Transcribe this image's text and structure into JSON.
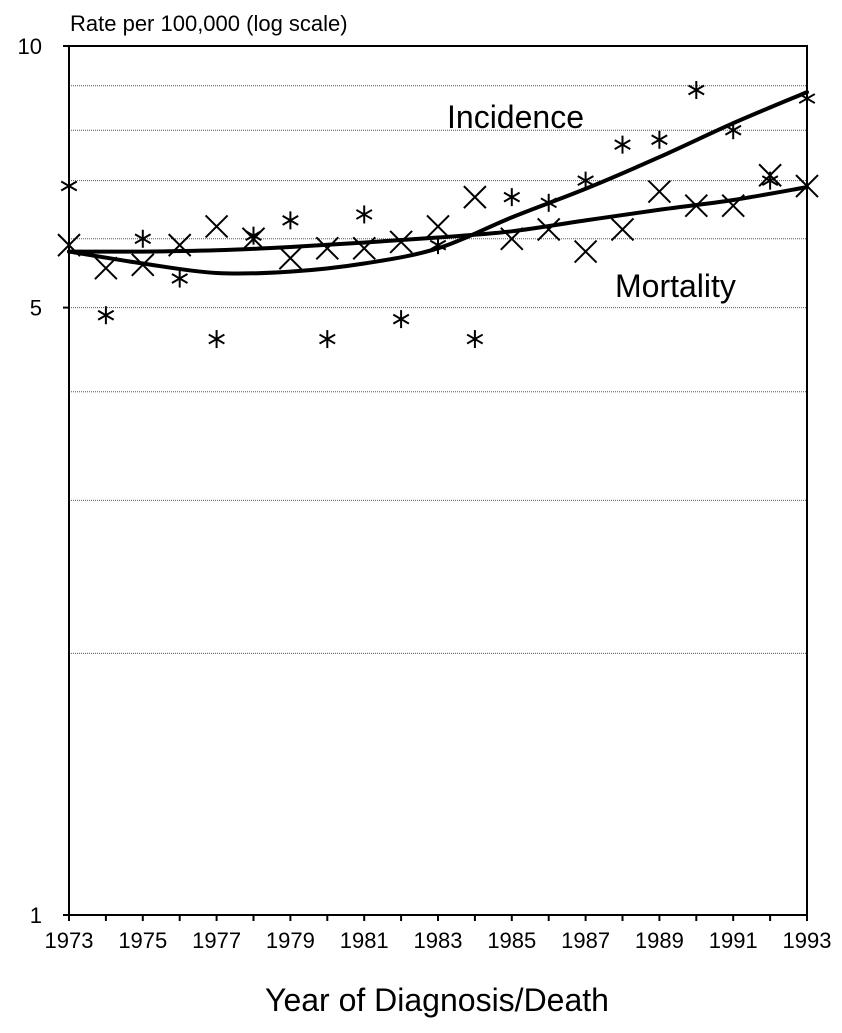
{
  "chart_data": {
    "type": "scatter",
    "title": "Rate per 100,000 (log scale)",
    "xlabel": "Year of Diagnosis/Death",
    "ylabel": "Rate per 100,000 (log scale)",
    "yscale": "log",
    "ylim": [
      1,
      10
    ],
    "xlim": [
      1973,
      1993
    ],
    "y_tick_labels": [
      "10",
      "5",
      "1"
    ],
    "x_tick_labels": [
      "1973",
      "1975",
      "1977",
      "1979",
      "1981",
      "1983",
      "1985",
      "1987",
      "1989",
      "1991",
      "1993"
    ],
    "grid_y": [
      9,
      8,
      7,
      6,
      5,
      4,
      3,
      2
    ],
    "series": [
      {
        "name": "Incidence",
        "marker": "asterisk",
        "x": [
          1973,
          1974,
          1975,
          1976,
          1977,
          1978,
          1979,
          1980,
          1981,
          1982,
          1983,
          1984,
          1985,
          1986,
          1987,
          1988,
          1989,
          1990,
          1991,
          1992,
          1993
        ],
        "y": [
          6.9,
          4.9,
          6.0,
          5.4,
          4.6,
          6.05,
          6.3,
          4.6,
          6.4,
          4.85,
          5.9,
          4.6,
          6.7,
          6.6,
          7.0,
          7.7,
          7.8,
          8.9,
          8.0,
          7.0,
          8.7
        ],
        "trend": [
          [
            1973,
            5.8
          ],
          [
            1975,
            5.62
          ],
          [
            1977,
            5.48
          ],
          [
            1979,
            5.5
          ],
          [
            1981,
            5.62
          ],
          [
            1983,
            5.85
          ],
          [
            1985,
            6.35
          ],
          [
            1987,
            6.85
          ],
          [
            1989,
            7.45
          ],
          [
            1991,
            8.15
          ],
          [
            1993,
            8.85
          ]
        ]
      },
      {
        "name": "Mortality",
        "marker": "x",
        "x": [
          1973,
          1974,
          1975,
          1976,
          1977,
          1978,
          1979,
          1980,
          1981,
          1982,
          1983,
          1984,
          1985,
          1986,
          1987,
          1988,
          1989,
          1990,
          1991,
          1992,
          1993
        ],
        "y": [
          5.9,
          5.55,
          5.6,
          5.9,
          6.2,
          6.0,
          5.7,
          5.85,
          5.85,
          5.95,
          6.2,
          6.7,
          6.0,
          6.15,
          5.8,
          6.15,
          6.8,
          6.55,
          6.55,
          7.1,
          6.9
        ],
        "trend": [
          [
            1973,
            5.8
          ],
          [
            1975,
            5.8
          ],
          [
            1977,
            5.82
          ],
          [
            1979,
            5.87
          ],
          [
            1981,
            5.94
          ],
          [
            1983,
            6.02
          ],
          [
            1985,
            6.12
          ],
          [
            1987,
            6.3
          ],
          [
            1989,
            6.48
          ],
          [
            1991,
            6.65
          ],
          [
            1993,
            6.88
          ]
        ]
      }
    ]
  }
}
